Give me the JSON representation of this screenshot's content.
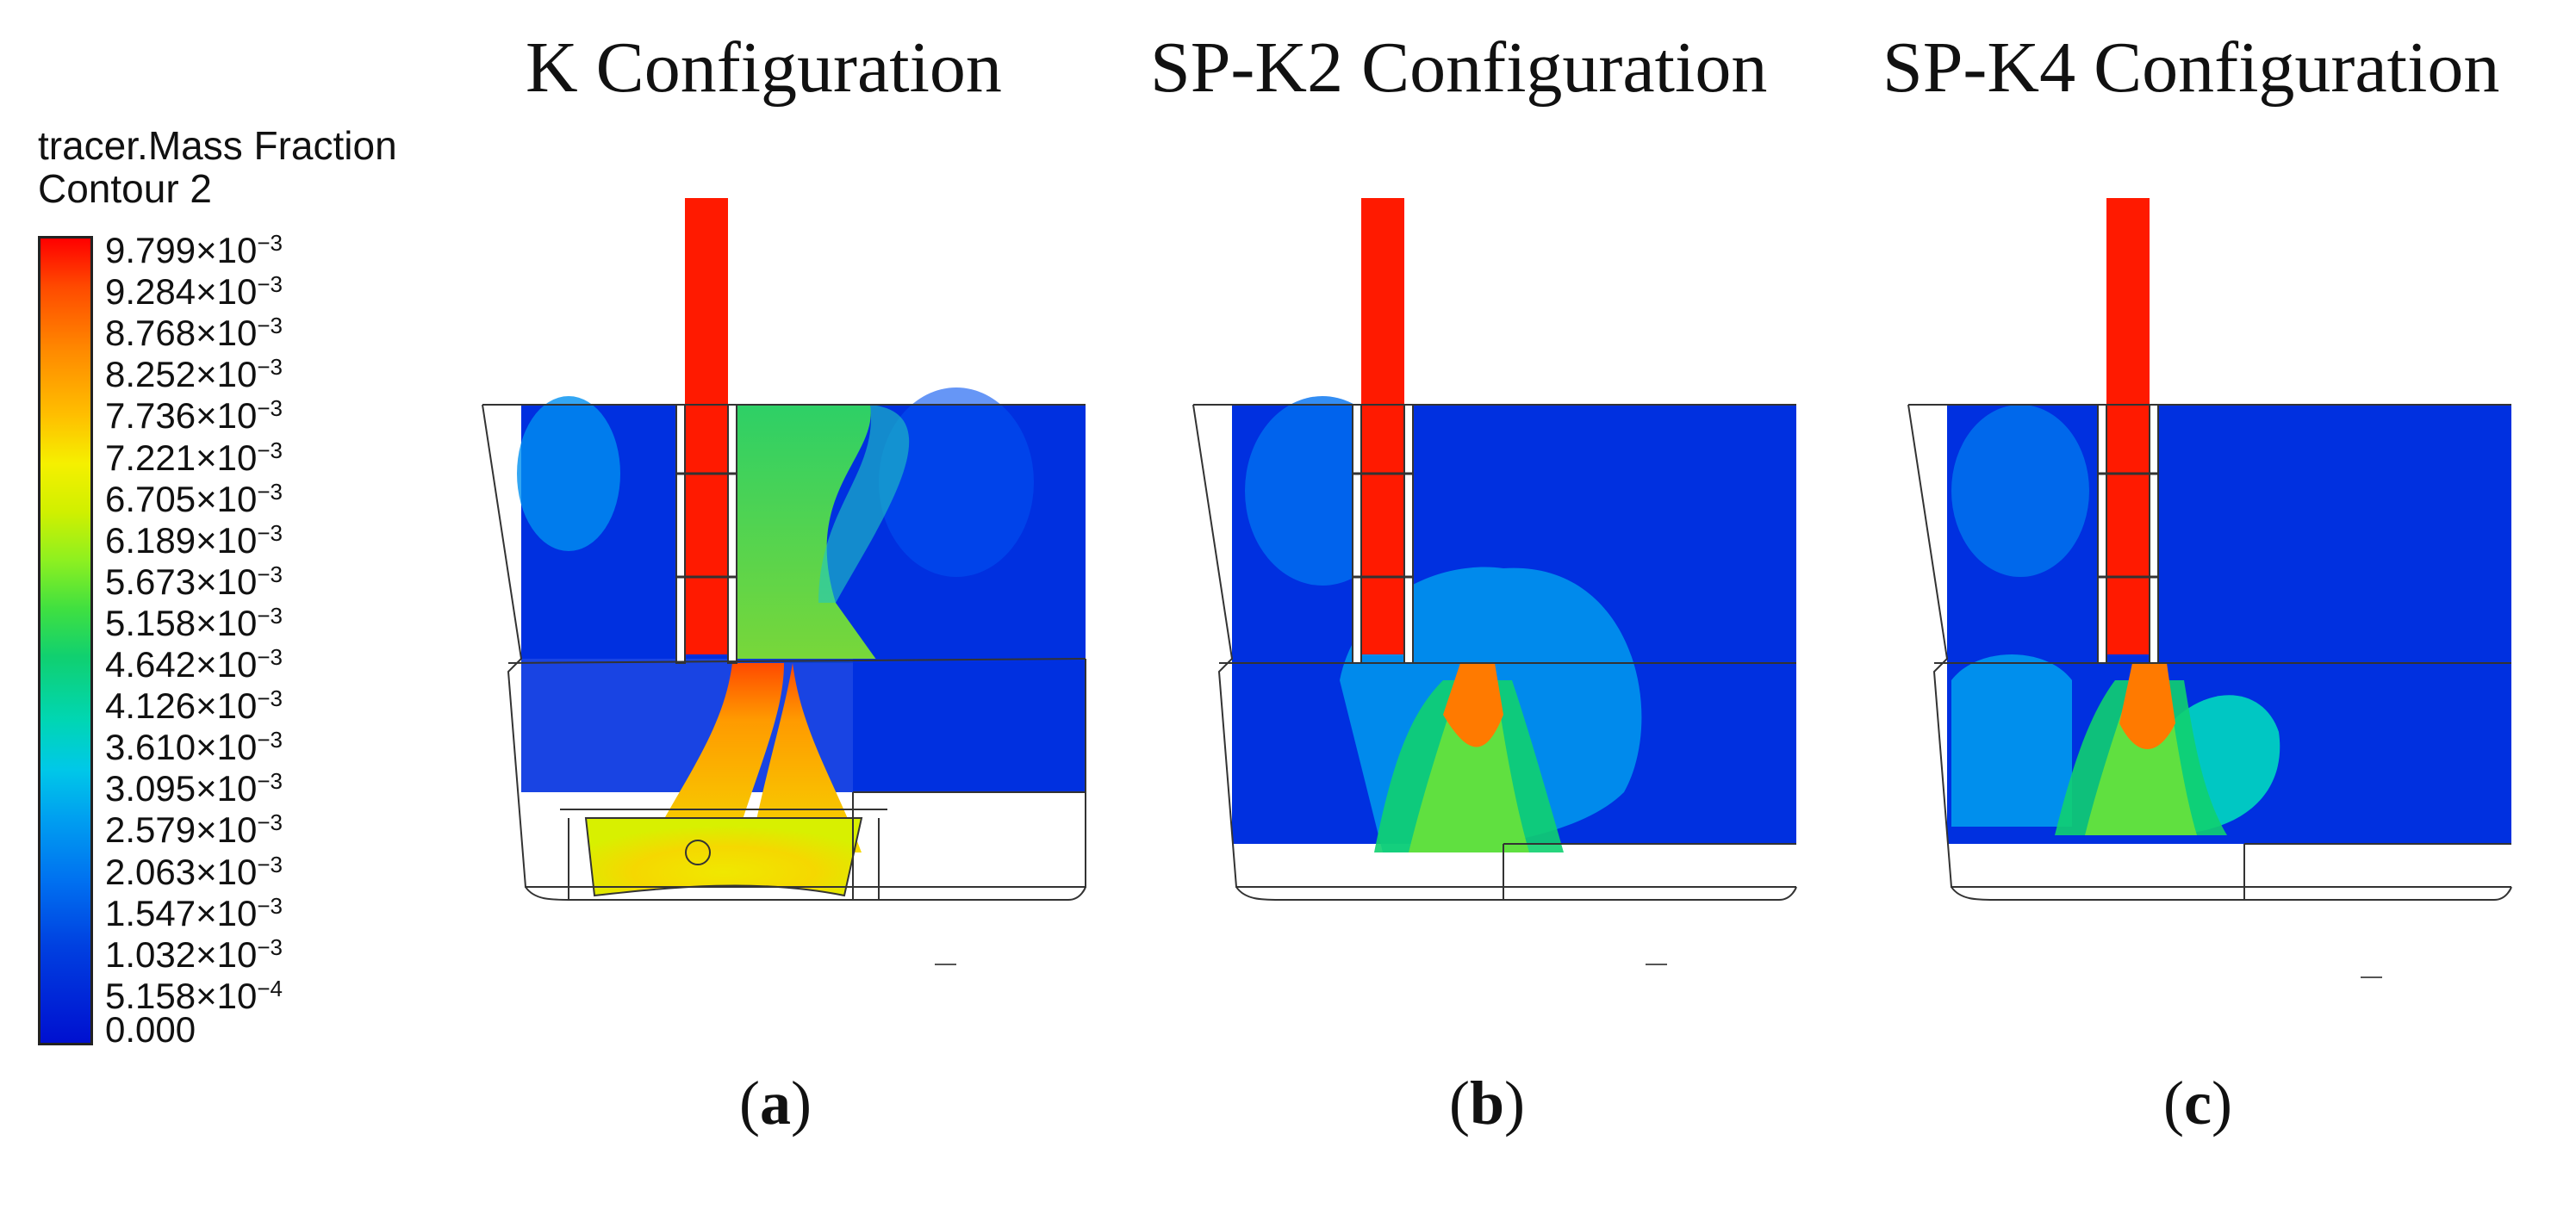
{
  "titles": {
    "a": "K Configuration",
    "b": "SP-K2 Configuration",
    "c": "SP-K4 Configuration"
  },
  "legend": {
    "title_line1": "tracer.Mass Fraction",
    "title_line2": "Contour 2",
    "ticks": [
      {
        "mantissa": "9.799",
        "times": "×10",
        "exp": "−3"
      },
      {
        "mantissa": "9.284",
        "times": "×10",
        "exp": "−3"
      },
      {
        "mantissa": "8.768",
        "times": "×10",
        "exp": "−3"
      },
      {
        "mantissa": "8.252",
        "times": "×10",
        "exp": "−3"
      },
      {
        "mantissa": "7.736",
        "times": "×10",
        "exp": "−3"
      },
      {
        "mantissa": "7.221",
        "times": "×10",
        "exp": "−3"
      },
      {
        "mantissa": "6.705",
        "times": "×10",
        "exp": "−3"
      },
      {
        "mantissa": "6.189",
        "times": "×10",
        "exp": "−3"
      },
      {
        "mantissa": "5.673",
        "times": "×10",
        "exp": "−3"
      },
      {
        "mantissa": "5.158",
        "times": "×10",
        "exp": "−3"
      },
      {
        "mantissa": "4.642",
        "times": "×10",
        "exp": "−3"
      },
      {
        "mantissa": "4.126",
        "times": "×10",
        "exp": "−3"
      },
      {
        "mantissa": "3.610",
        "times": "×10",
        "exp": "−3"
      },
      {
        "mantissa": "3.095",
        "times": "×10",
        "exp": "−3"
      },
      {
        "mantissa": "2.579",
        "times": "×10",
        "exp": "−3"
      },
      {
        "mantissa": "2.063",
        "times": "×10",
        "exp": "−3"
      },
      {
        "mantissa": "1.547",
        "times": "×10",
        "exp": "−3"
      },
      {
        "mantissa": "1.032",
        "times": "×10",
        "exp": "−3"
      },
      {
        "mantissa": "5.158",
        "times": "×10",
        "exp": "−4"
      },
      {
        "mantissa": "0.000",
        "times": "",
        "exp": ""
      }
    ]
  },
  "captions": {
    "a": {
      "open": "(",
      "letter": "a",
      "close": ")"
    },
    "b": {
      "open": "(",
      "letter": "b",
      "close": ")"
    },
    "c": {
      "open": "(",
      "letter": "c",
      "close": ")"
    }
  },
  "colors": {
    "max": "#ff0000",
    "min": "#0010d0",
    "outline": "#333333"
  }
}
